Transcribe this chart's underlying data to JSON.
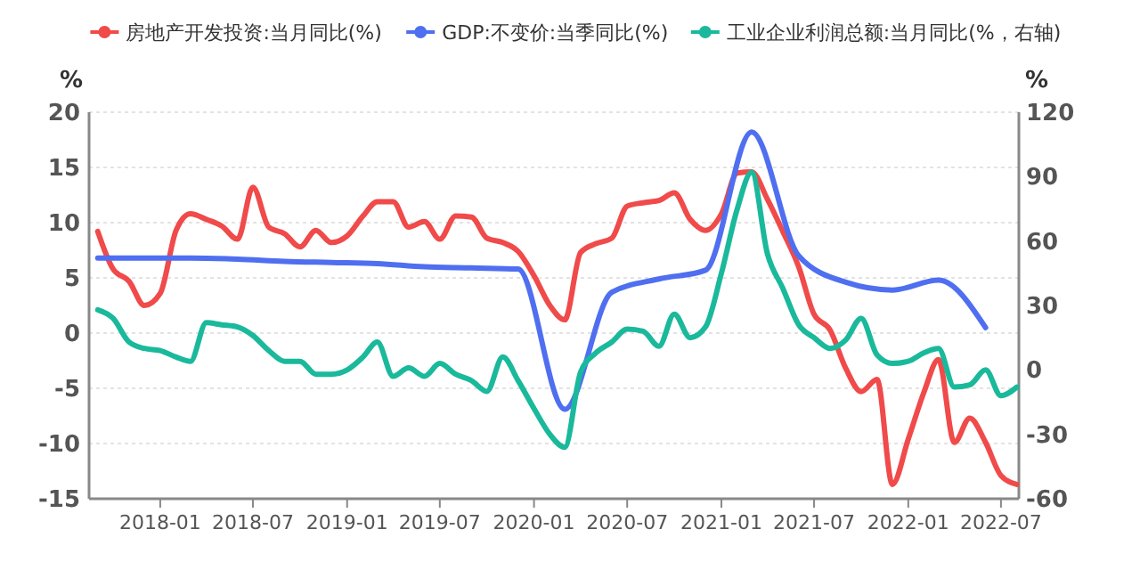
{
  "chart_data": {
    "type": "line",
    "ylabel": "%",
    "y2label": "%",
    "legend": "top",
    "grid": "y",
    "marker": "none",
    "line_style": "solid",
    "xlim": [
      "2017-08-15",
      "2022-08-05"
    ],
    "xticks": [
      "2018-01",
      "2018-07",
      "2019-01",
      "2019-07",
      "2020-01",
      "2020-07",
      "2021-01",
      "2021-07",
      "2022-01",
      "2022-07"
    ],
    "ylim": [
      -15,
      20
    ],
    "yticks": [
      -15,
      -10,
      -5,
      0,
      5,
      10,
      15,
      20
    ],
    "y2lim": [
      -60,
      120
    ],
    "y2ticks": [
      -60,
      -30,
      0,
      30,
      60,
      90,
      120
    ],
    "series": [
      {
        "name": "房地产开发投资:当月同比(%)",
        "color": "#f04a4a",
        "x": [
          "2017-09",
          "2017-10",
          "2017-11",
          "2017-12",
          "2018-01",
          "2018-02",
          "2018-03",
          "2018-04",
          "2018-05",
          "2018-06",
          "2018-07",
          "2018-08",
          "2018-09",
          "2018-10",
          "2018-11",
          "2018-12",
          "2019-01",
          "2019-02",
          "2019-03",
          "2019-04",
          "2019-05",
          "2019-06",
          "2019-07",
          "2019-08",
          "2019-09",
          "2019-10",
          "2019-11",
          "2019-12",
          "2020-01",
          "2020-02",
          "2020-03",
          "2020-04",
          "2020-05",
          "2020-06",
          "2020-07",
          "2020-08",
          "2020-09",
          "2020-10",
          "2020-11",
          "2020-12",
          "2021-01",
          "2021-02",
          "2021-03",
          "2021-04",
          "2021-05",
          "2021-06",
          "2021-07",
          "2021-08",
          "2021-09",
          "2021-10",
          "2021-11",
          "2021-12",
          "2022-01",
          "2022-02",
          "2022-03",
          "2022-04",
          "2022-05",
          "2022-06",
          "2022-07",
          "2022-08"
        ],
        "values": [
          9.2,
          5.8,
          4.7,
          2.5,
          3.6,
          9.3,
          10.8,
          10.3,
          9.7,
          8.5,
          13.2,
          9.6,
          9.0,
          7.8,
          9.3,
          8.2,
          8.8,
          10.6,
          11.9,
          11.9,
          9.6,
          10.1,
          8.5,
          10.6,
          10.5,
          8.6,
          8.2,
          7.4,
          5.2,
          2.5,
          1.2,
          7.3,
          8.1,
          8.6,
          11.5,
          11.8,
          12.0,
          12.7,
          10.3,
          9.3,
          10.8,
          14.5,
          14.6,
          12.1,
          9.2,
          6.0,
          1.7,
          0.3,
          -3.2,
          -5.3,
          -4.2,
          -13.7,
          -9.6,
          -5.3,
          -2.4,
          -9.9,
          -7.7,
          -9.9,
          -12.9,
          -13.7
        ]
      },
      {
        "name": "GDP:不变价:当季同比(%)",
        "color": "#4f6ff0",
        "x": [
          "2017-09",
          "2017-12",
          "2018-03",
          "2018-06",
          "2018-09",
          "2018-12",
          "2019-03",
          "2019-06",
          "2019-09",
          "2019-12",
          "2020-03",
          "2020-06",
          "2020-09",
          "2020-12",
          "2021-03",
          "2021-06",
          "2021-09",
          "2021-12",
          "2022-03",
          "2022-06"
        ],
        "values": [
          6.8,
          6.8,
          6.8,
          6.7,
          6.5,
          6.4,
          6.3,
          6.0,
          5.9,
          5.8,
          -6.9,
          3.7,
          4.9,
          5.7,
          18.2,
          7.0,
          4.6,
          3.9,
          4.8,
          0.5
        ]
      },
      {
        "name": "工业企业利润总额:当月同比(%，右轴)",
        "color": "#1ab99b",
        "axis": "y2",
        "x": [
          "2017-09",
          "2017-10",
          "2017-11",
          "2017-12",
          "2018-01",
          "2018-02",
          "2018-03",
          "2018-04",
          "2018-05",
          "2018-06",
          "2018-07",
          "2018-08",
          "2018-09",
          "2018-10",
          "2018-11",
          "2018-12",
          "2019-01",
          "2019-02",
          "2019-03",
          "2019-04",
          "2019-05",
          "2019-06",
          "2019-07",
          "2019-08",
          "2019-09",
          "2019-10",
          "2019-11",
          "2019-12",
          "2020-01",
          "2020-02",
          "2020-03",
          "2020-04",
          "2020-05",
          "2020-06",
          "2020-07",
          "2020-08",
          "2020-09",
          "2020-10",
          "2020-11",
          "2020-12",
          "2021-01",
          "2021-02",
          "2021-03",
          "2021-04",
          "2021-05",
          "2021-06",
          "2021-07",
          "2021-08",
          "2021-09",
          "2021-10",
          "2021-11",
          "2021-12",
          "2022-01",
          "2022-02",
          "2022-03",
          "2022-04",
          "2022-05",
          "2022-06",
          "2022-07",
          "2022-08"
        ],
        "values": [
          28,
          24,
          13,
          10,
          9,
          6,
          4,
          22,
          21,
          20,
          16,
          9,
          4,
          4,
          -2,
          -2,
          0,
          6,
          13,
          -3,
          1,
          -3,
          3,
          -2,
          -5,
          -10,
          6,
          -5,
          -18,
          -30,
          -36,
          -1,
          8,
          13,
          19,
          18,
          11,
          26,
          15,
          20,
          45,
          75,
          92,
          54,
          38,
          21,
          15,
          10,
          14,
          24,
          7,
          3,
          4,
          8,
          10,
          -8,
          -7,
          0,
          -12,
          -8
        ]
      }
    ]
  }
}
